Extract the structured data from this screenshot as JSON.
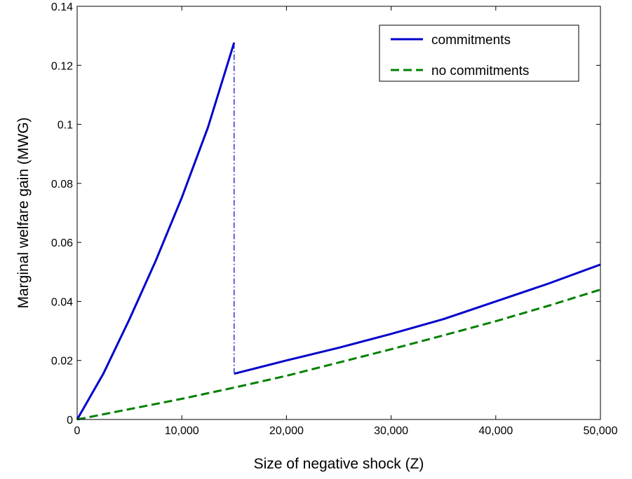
{
  "chart_data": {
    "type": "line",
    "title": "",
    "xlabel": "Size of negative shock (Z)",
    "ylabel": "Marginal welfare gain (MWG)",
    "xlim": [
      0,
      50000
    ],
    "ylim": [
      0,
      0.14
    ],
    "x_ticks": [
      0,
      10000,
      20000,
      30000,
      40000,
      50000
    ],
    "x_tick_labels": [
      "0",
      "10,000",
      "20,000",
      "30,000",
      "40,000",
      "50,000"
    ],
    "y_ticks": [
      0,
      0.02,
      0.04,
      0.06,
      0.08,
      0.1,
      0.12,
      0.14
    ],
    "y_tick_labels": [
      "0",
      "0.02",
      "0.04",
      "0.06",
      "0.08",
      "0.1",
      "0.12",
      "0.14"
    ],
    "grid": false,
    "legend_position": "top-right",
    "legend": [
      "commitments",
      "no commitments"
    ],
    "series": [
      {
        "name": "commitments",
        "color": "#0000CC",
        "style": "solid",
        "segments": [
          {
            "x": [
              0,
              2500,
              5000,
              7500,
              10000,
              12500,
              15000
            ],
            "y": [
              0,
              0.0155,
              0.034,
              0.0537,
              0.0752,
              0.099,
              0.1277
            ]
          },
          {
            "x": [
              15000,
              20000,
              25000,
              30000,
              35000,
              40000,
              45000,
              50000
            ],
            "y": [
              0.0155,
              0.02,
              0.0243,
              0.029,
              0.034,
              0.04,
              0.046,
              0.0525
            ]
          }
        ]
      },
      {
        "name": "no commitments",
        "color": "#008000",
        "style": "dashed",
        "segments": [
          {
            "x": [
              0,
              5000,
              10000,
              15000,
              20000,
              25000,
              30000,
              35000,
              40000,
              45000,
              50000
            ],
            "y": [
              0,
              0.0035,
              0.007,
              0.0108,
              0.0148,
              0.0193,
              0.0238,
              0.0285,
              0.0333,
              0.0385,
              0.044
            ]
          }
        ]
      }
    ],
    "annotations": [
      {
        "type": "vertical-jump",
        "x": 15000,
        "y_from": 0.0155,
        "y_to": 0.1277,
        "color": "#0000CC",
        "style": "dash-dot"
      }
    ]
  }
}
